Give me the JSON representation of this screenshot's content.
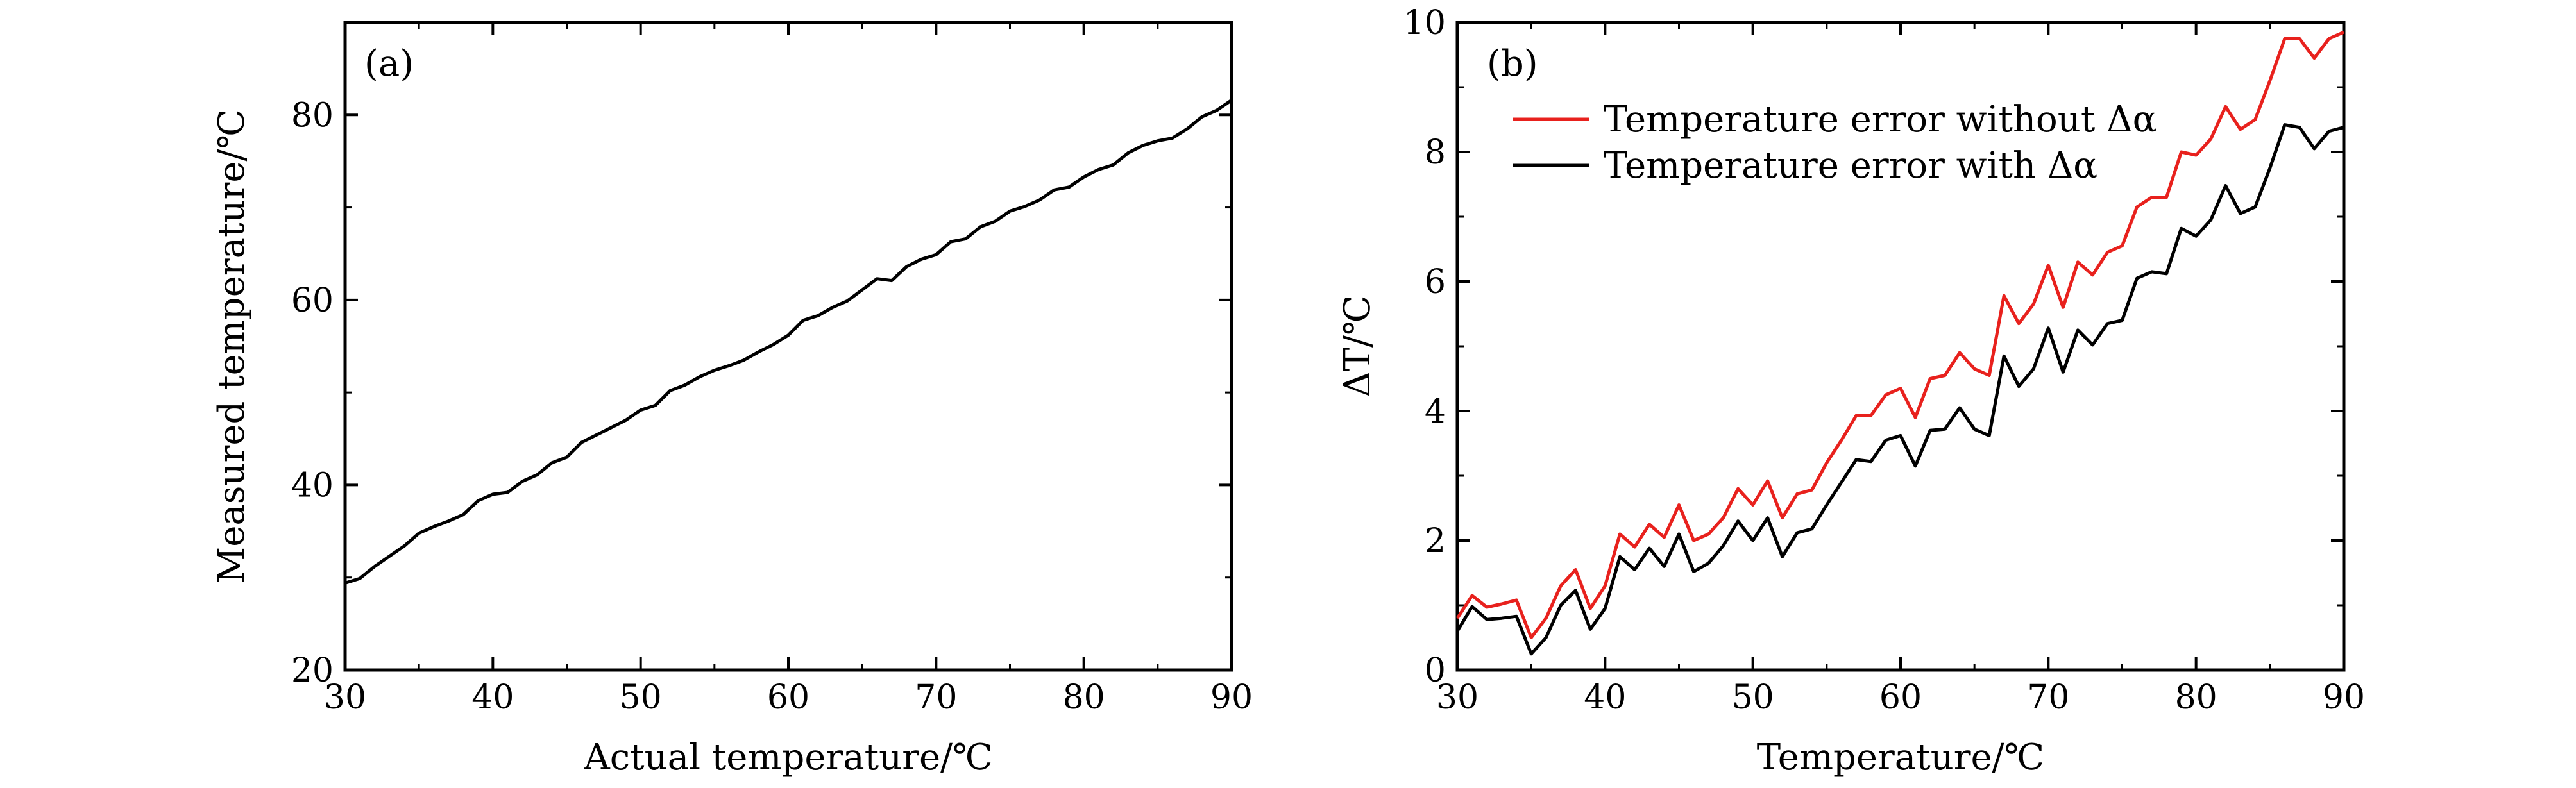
{
  "chart_data": [
    {
      "type": "line",
      "panel_label": "(a)",
      "xlabel": "Actual temperature/℃",
      "ylabel": "Measured temperature/℃",
      "xlim": [
        30,
        90
      ],
      "ylim": [
        20,
        90
      ],
      "xticks": [
        30,
        40,
        50,
        60,
        70,
        80,
        90
      ],
      "yticks": [
        20,
        40,
        60,
        80
      ],
      "grid": false,
      "series": [
        {
          "color": "#000000",
          "x": [
            30,
            31,
            32,
            33,
            34,
            35,
            36,
            37,
            38,
            39,
            40,
            41,
            42,
            43,
            44,
            45,
            46,
            47,
            48,
            49,
            50,
            51,
            52,
            53,
            54,
            55,
            56,
            57,
            58,
            59,
            60,
            61,
            62,
            63,
            64,
            65,
            66,
            67,
            68,
            69,
            70,
            71,
            72,
            73,
            74,
            75,
            76,
            77,
            78,
            79,
            80,
            81,
            82,
            83,
            84,
            85,
            86,
            87,
            88,
            89,
            90
          ],
          "y": [
            29.4,
            29.9,
            31.2,
            32.3,
            33.4,
            34.8,
            35.5,
            36.1,
            36.8,
            38.3,
            39.0,
            39.2,
            40.4,
            41.1,
            42.4,
            43.0,
            44.6,
            45.4,
            46.2,
            47.0,
            48.1,
            48.6,
            50.2,
            50.8,
            51.7,
            52.4,
            52.9,
            53.5,
            54.4,
            55.2,
            56.2,
            57.8,
            58.3,
            59.2,
            59.9,
            61.1,
            62.3,
            62.1,
            63.6,
            64.4,
            64.9,
            66.3,
            66.6,
            67.9,
            68.5,
            69.6,
            70.1,
            70.8,
            71.9,
            72.2,
            73.3,
            74.1,
            74.6,
            75.9,
            76.7,
            77.2,
            77.5,
            78.5,
            79.8,
            80.5,
            81.6
          ]
        }
      ]
    },
    {
      "type": "line",
      "panel_label": "(b)",
      "xlabel": "Temperature/℃",
      "ylabel": "ΔT/℃",
      "xlim": [
        30,
        90
      ],
      "ylim": [
        0,
        10
      ],
      "xticks": [
        30,
        40,
        50,
        60,
        70,
        80,
        90
      ],
      "yticks": [
        0,
        2,
        4,
        6,
        8,
        10
      ],
      "grid": false,
      "legend_position": "top-left",
      "series": [
        {
          "name": "Temperature error without Δα",
          "color": "#e8211d",
          "x": [
            30,
            31,
            32,
            33,
            34,
            35,
            36,
            37,
            38,
            39,
            40,
            41,
            42,
            43,
            44,
            45,
            46,
            47,
            48,
            49,
            50,
            51,
            52,
            53,
            54,
            55,
            56,
            57,
            58,
            59,
            60,
            61,
            62,
            63,
            64,
            65,
            66,
            67,
            68,
            69,
            70,
            71,
            72,
            73,
            74,
            75,
            76,
            77,
            78,
            79,
            80,
            81,
            82,
            83,
            84,
            85,
            86,
            87,
            88,
            89,
            90
          ],
          "y": [
            0.8,
            1.15,
            0.97,
            1.02,
            1.08,
            0.5,
            0.8,
            1.3,
            1.55,
            0.95,
            1.3,
            2.1,
            1.9,
            2.25,
            2.05,
            2.55,
            2.0,
            2.1,
            2.35,
            2.8,
            2.55,
            2.92,
            2.35,
            2.72,
            2.78,
            3.2,
            3.55,
            3.93,
            3.93,
            4.25,
            4.35,
            3.9,
            4.5,
            4.55,
            4.9,
            4.65,
            4.55,
            5.78,
            5.35,
            5.65,
            6.25,
            5.6,
            6.3,
            6.1,
            6.45,
            6.55,
            7.15,
            7.3,
            7.3,
            8.0,
            7.95,
            8.2,
            8.7,
            8.35,
            8.5,
            9.1,
            9.75,
            9.75,
            9.45,
            9.75,
            9.85
          ]
        },
        {
          "name": "Temperature error with Δα",
          "color": "#000000",
          "x": [
            30,
            31,
            32,
            33,
            34,
            35,
            36,
            37,
            38,
            39,
            40,
            41,
            42,
            43,
            44,
            45,
            46,
            47,
            48,
            49,
            50,
            51,
            52,
            53,
            54,
            55,
            56,
            57,
            58,
            59,
            60,
            61,
            62,
            63,
            64,
            65,
            66,
            67,
            68,
            69,
            70,
            71,
            72,
            73,
            74,
            75,
            76,
            77,
            78,
            79,
            80,
            81,
            82,
            83,
            84,
            85,
            86,
            87,
            88,
            89,
            90
          ],
          "y": [
            0.6,
            0.98,
            0.78,
            0.8,
            0.83,
            0.25,
            0.5,
            1.0,
            1.23,
            0.63,
            0.95,
            1.75,
            1.55,
            1.88,
            1.6,
            2.1,
            1.52,
            1.65,
            1.92,
            2.3,
            2.0,
            2.35,
            1.75,
            2.12,
            2.18,
            2.55,
            2.9,
            3.25,
            3.22,
            3.55,
            3.62,
            3.15,
            3.7,
            3.72,
            4.05,
            3.72,
            3.62,
            4.85,
            4.38,
            4.65,
            5.28,
            4.6,
            5.25,
            5.02,
            5.35,
            5.4,
            6.05,
            6.15,
            6.12,
            6.82,
            6.7,
            6.95,
            7.48,
            7.05,
            7.15,
            7.75,
            8.42,
            8.38,
            8.05,
            8.32,
            8.38
          ]
        }
      ]
    }
  ]
}
